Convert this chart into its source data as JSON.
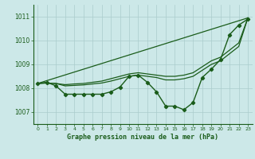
{
  "background_color": "#cce8e8",
  "grid_color": "#aacccc",
  "line_color": "#1a5c1a",
  "title": "Graphe pression niveau de la mer (hPa)",
  "xlim": [
    -0.5,
    23.5
  ],
  "ylim": [
    1006.5,
    1011.5
  ],
  "yticks": [
    1007,
    1008,
    1009,
    1010,
    1011
  ],
  "xticks": [
    0,
    1,
    2,
    3,
    4,
    5,
    6,
    7,
    8,
    9,
    10,
    11,
    12,
    13,
    14,
    15,
    16,
    17,
    18,
    19,
    20,
    21,
    22,
    23
  ],
  "series_markers": {
    "x": [
      0,
      1,
      2,
      3,
      4,
      5,
      6,
      7,
      8,
      9,
      10,
      11,
      12,
      13,
      14,
      15,
      16,
      17,
      18,
      19,
      20,
      21,
      22,
      23
    ],
    "y": [
      1008.2,
      1008.25,
      1008.1,
      1007.75,
      1007.75,
      1007.75,
      1007.75,
      1007.75,
      1007.85,
      1008.05,
      1008.5,
      1008.55,
      1008.25,
      1007.85,
      1007.25,
      1007.25,
      1007.1,
      1007.4,
      1008.45,
      1008.8,
      1009.2,
      1010.25,
      1010.65,
      1010.9
    ]
  },
  "series_straight": {
    "x": [
      0,
      23
    ],
    "y": [
      1008.2,
      1010.95
    ]
  },
  "series_upper": {
    "x": [
      0,
      1,
      2,
      3,
      4,
      5,
      6,
      7,
      8,
      9,
      10,
      11,
      12,
      13,
      14,
      15,
      16,
      17,
      18,
      19,
      20,
      21,
      22,
      23
    ],
    "y": [
      1008.2,
      1008.22,
      1008.2,
      1008.15,
      1008.18,
      1008.2,
      1008.25,
      1008.3,
      1008.4,
      1008.5,
      1008.6,
      1008.65,
      1008.6,
      1008.55,
      1008.5,
      1008.5,
      1008.55,
      1008.65,
      1008.9,
      1009.15,
      1009.3,
      1009.6,
      1009.9,
      1010.95
    ]
  },
  "series_lower": {
    "x": [
      0,
      1,
      2,
      3,
      4,
      5,
      6,
      7,
      8,
      9,
      10,
      11,
      12,
      13,
      14,
      15,
      16,
      17,
      18,
      19,
      20,
      21,
      22,
      23
    ],
    "y": [
      1008.2,
      1008.22,
      1008.2,
      1008.1,
      1008.12,
      1008.14,
      1008.18,
      1008.22,
      1008.3,
      1008.4,
      1008.5,
      1008.55,
      1008.5,
      1008.45,
      1008.35,
      1008.35,
      1008.4,
      1008.5,
      1008.75,
      1009.0,
      1009.15,
      1009.45,
      1009.75,
      1010.95
    ]
  }
}
